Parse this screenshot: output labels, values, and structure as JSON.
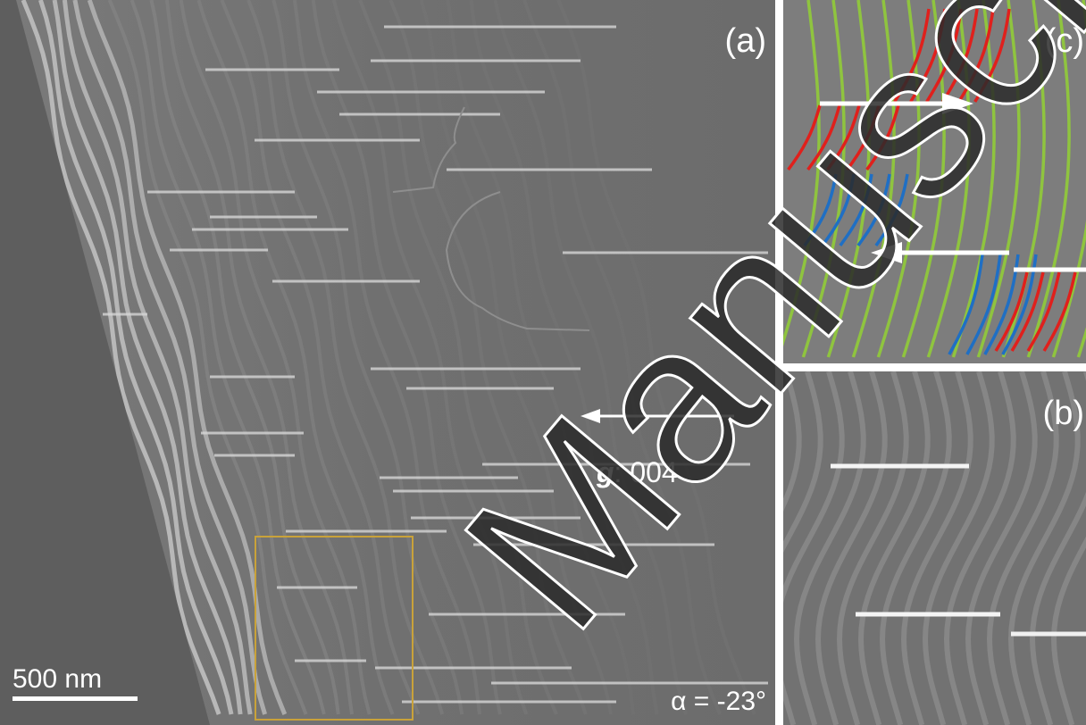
{
  "panels": {
    "a": {
      "label": "(a)",
      "g_symbol": "g",
      "g_text": ": 004",
      "scale_bar": "500 nm",
      "tilt": "α = -23°"
    },
    "b": {
      "label": "(b)"
    },
    "c": {
      "label": "(c)"
    }
  },
  "watermark": "Manuscript"
}
